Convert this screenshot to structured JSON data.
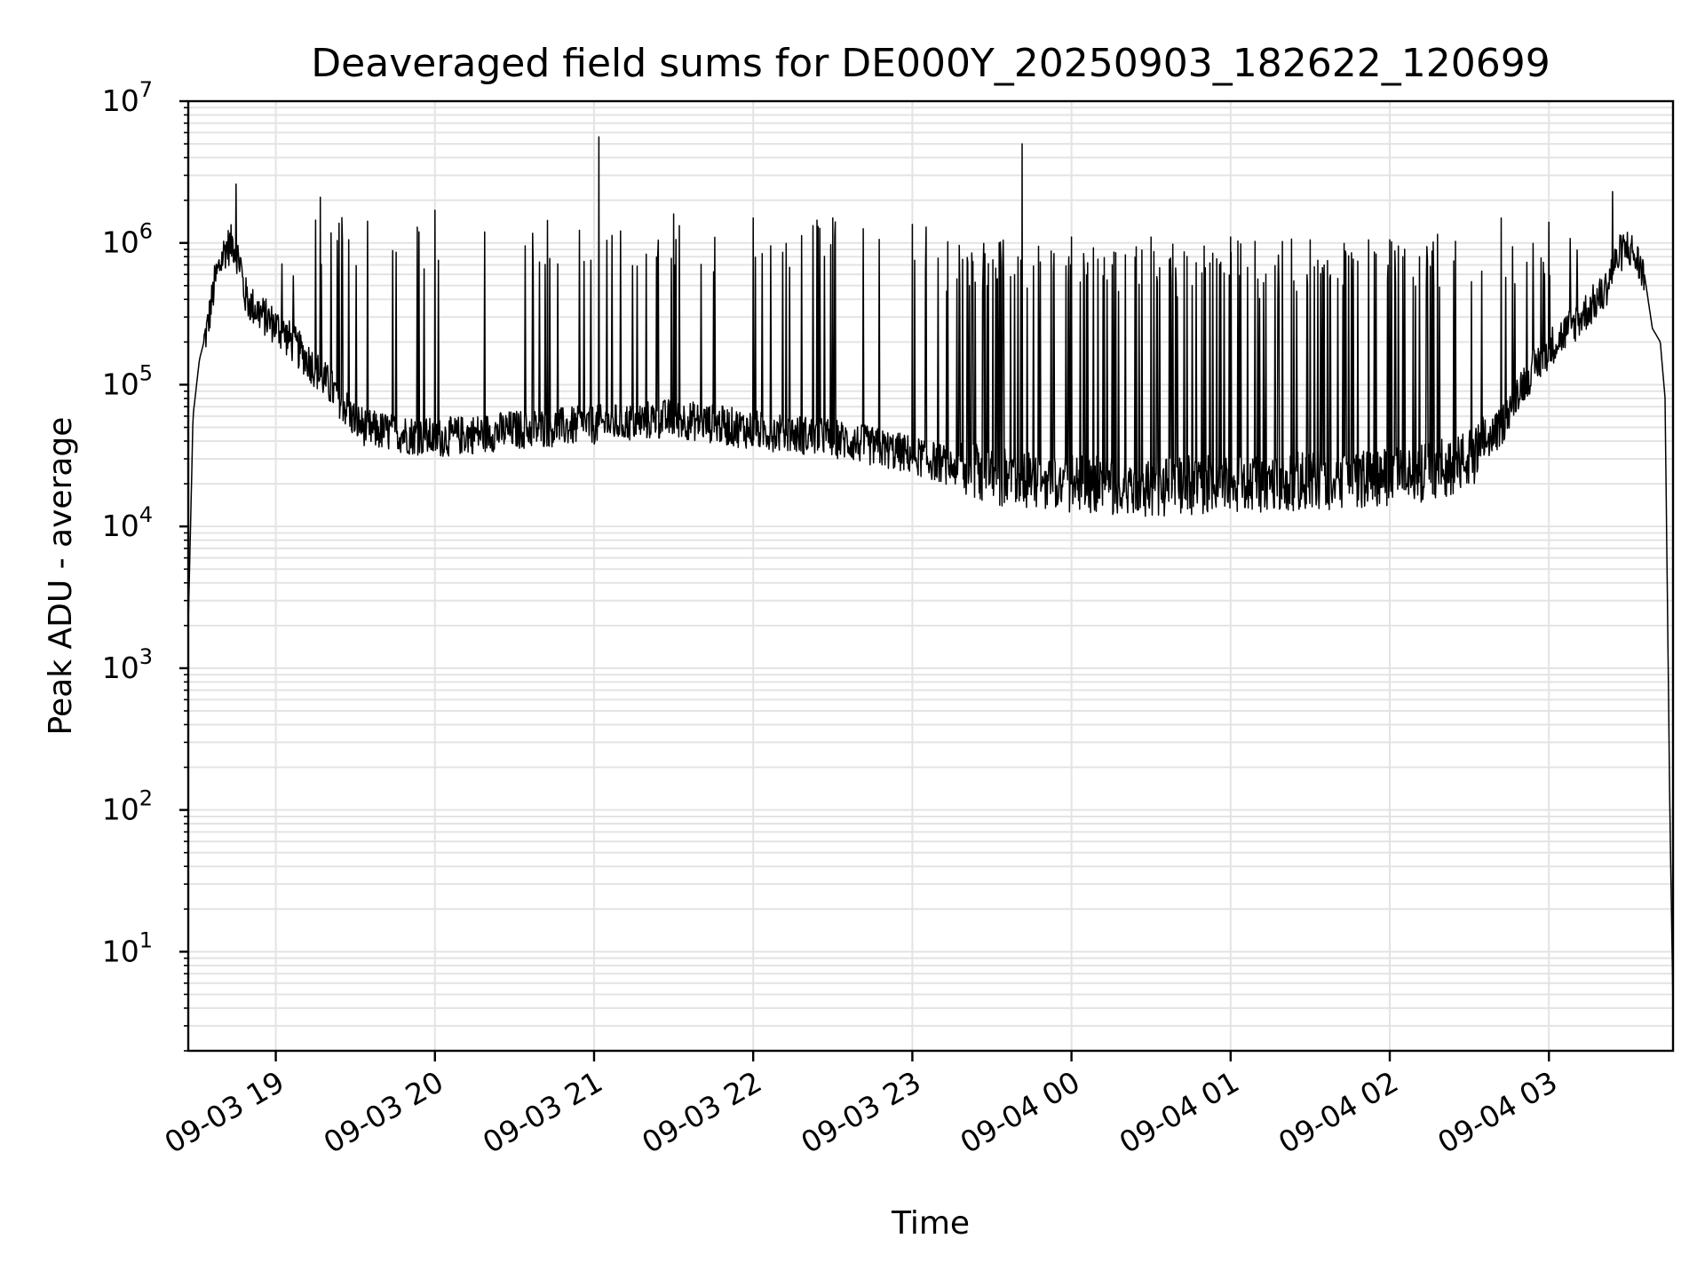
{
  "chart_data": {
    "type": "line",
    "title": "Deaveraged field sums for DE000Y_20250903_182622_120699",
    "xlabel": "Time",
    "ylabel": "Peak ADU - average",
    "x_tick_labels": [
      "09-03 19",
      "09-03 20",
      "09-03 21",
      "09-03 22",
      "09-03 23",
      "09-04 00",
      "09-04 01",
      "09-04 02",
      "09-04 03"
    ],
    "y_tick_exponents": [
      "1",
      "2",
      "3",
      "4",
      "5",
      "6",
      "7"
    ],
    "y_tick_base": "10",
    "yscale": "log",
    "ylim": [
      2,
      10000000
    ],
    "grid": true,
    "legend": "none",
    "x_range_hours": [
      18.45,
      27.78
    ],
    "x_ticks_hours": [
      19,
      20,
      21,
      22,
      23,
      24,
      25,
      26,
      27
    ],
    "series": [
      {
        "color": "#000000",
        "x_hours": [
          18.45,
          18.48,
          18.52,
          18.57,
          18.62,
          18.68,
          18.73,
          18.78,
          18.8,
          18.83,
          18.9,
          19.0,
          19.1,
          19.2,
          19.3,
          19.4,
          19.5,
          19.6,
          19.8,
          20.0,
          20.5,
          21.0,
          21.5,
          22.0,
          22.5,
          23.0,
          23.5,
          24.0,
          24.5,
          25.0,
          25.5,
          26.0,
          26.3,
          26.5,
          26.7,
          26.8,
          27.0,
          27.2,
          27.35,
          27.4,
          27.45,
          27.5,
          27.6,
          27.65,
          27.7,
          27.73,
          27.76,
          27.78
        ],
        "values": [
          2000,
          60000,
          150000,
          250000,
          550000,
          900000,
          1000000,
          700000,
          450000,
          380000,
          320000,
          260000,
          200000,
          150000,
          110000,
          80000,
          55000,
          48000,
          45000,
          42000,
          48000,
          52000,
          58000,
          48000,
          42000,
          32000,
          22000,
          20000,
          19000,
          20000,
          21000,
          22000,
          25000,
          30000,
          50000,
          90000,
          180000,
          300000,
          450000,
          650000,
          850000,
          950000,
          600000,
          250000,
          200000,
          80000,
          100,
          4
        ],
        "spikes": [
          {
            "x": 18.75,
            "peak": 2600000
          },
          {
            "x": 19.28,
            "peak": 2100000
          },
          {
            "x": 20.0,
            "peak": 1700000
          },
          {
            "x": 21.03,
            "peak": 5600000
          },
          {
            "x": 21.5,
            "peak": 1600000
          },
          {
            "x": 22.0,
            "peak": 1500000
          },
          {
            "x": 22.5,
            "peak": 1500000
          },
          {
            "x": 23.0,
            "peak": 1350000
          },
          {
            "x": 23.69,
            "peak": 5000000
          },
          {
            "x": 24.0,
            "peak": 1100000
          },
          {
            "x": 24.5,
            "peak": 1100000
          },
          {
            "x": 25.0,
            "peak": 1100000
          },
          {
            "x": 25.5,
            "peak": 1050000
          },
          {
            "x": 26.0,
            "peak": 1050000
          },
          {
            "x": 26.3,
            "peak": 1150000
          },
          {
            "x": 26.7,
            "peak": 1500000
          },
          {
            "x": 27.0,
            "peak": 1400000
          },
          {
            "x": 27.4,
            "peak": 2300000
          }
        ]
      }
    ]
  }
}
